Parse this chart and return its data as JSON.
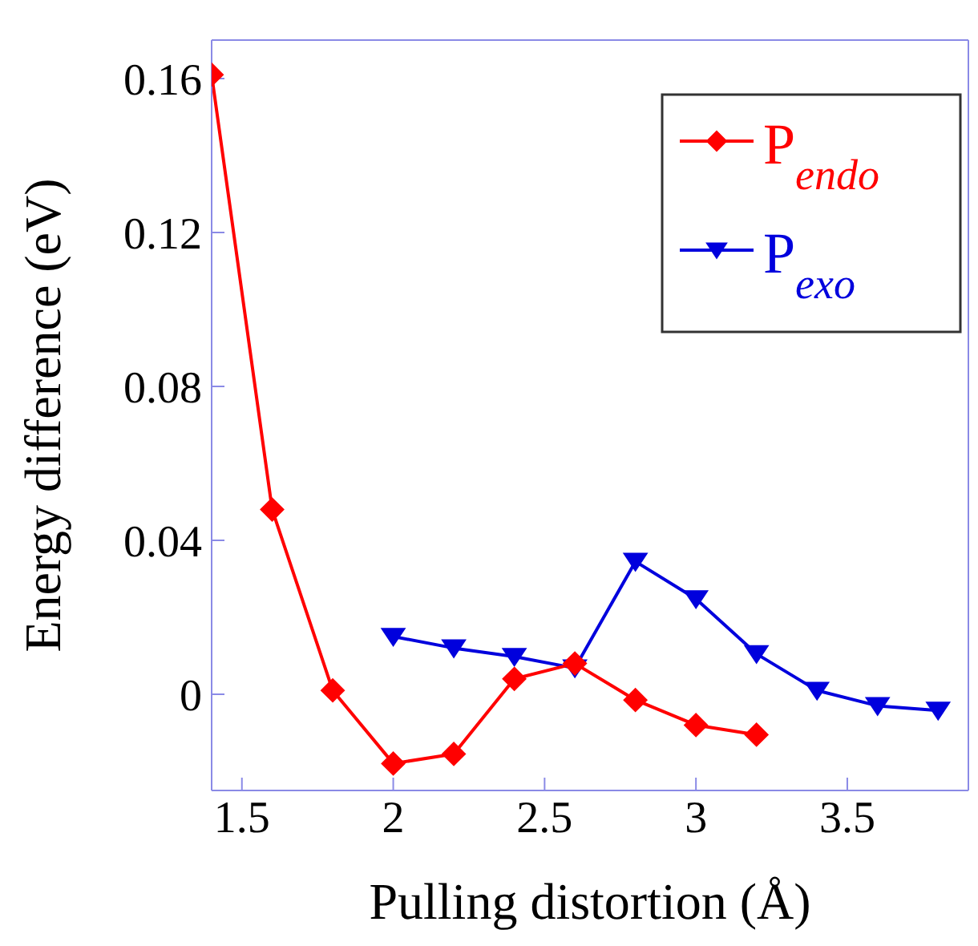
{
  "chart_data": {
    "type": "line",
    "xlabel": "Pulling distortion (Å)",
    "ylabel": "Energy difference (eV)",
    "xlim": [
      1.4,
      3.9
    ],
    "xticks": [
      1.5,
      2,
      2.5,
      3,
      3.5
    ],
    "ylim": [
      -0.025,
      0.17
    ],
    "yticks": [
      0,
      0.04,
      0.08,
      0.12,
      0.16
    ],
    "legend": "top right",
    "line_style": "solid",
    "series": [
      {
        "name": "P$_{endo}$",
        "color": "#ff0000",
        "marker": "diamond",
        "x": [
          1.4,
          1.6,
          1.8,
          2.0,
          2.2,
          2.4,
          2.6,
          2.8,
          3.0,
          3.2
        ],
        "values": [
          0.161,
          0.048,
          0.001,
          -0.018,
          -0.0155,
          0.004,
          0.008,
          -0.0015,
          -0.008,
          -0.0105
        ]
      },
      {
        "name": "P$_{exo}$",
        "color": "#0000dd",
        "marker": "triangle",
        "x": [
          2.0,
          2.2,
          2.4,
          2.6,
          2.8,
          3.0,
          3.2,
          3.4,
          3.6,
          3.8
        ],
        "values": [
          0.015,
          0.012,
          0.0098,
          0.0068,
          0.0345,
          0.0248,
          0.0105,
          0.001,
          -0.003,
          -0.0042
        ]
      }
    ]
  }
}
